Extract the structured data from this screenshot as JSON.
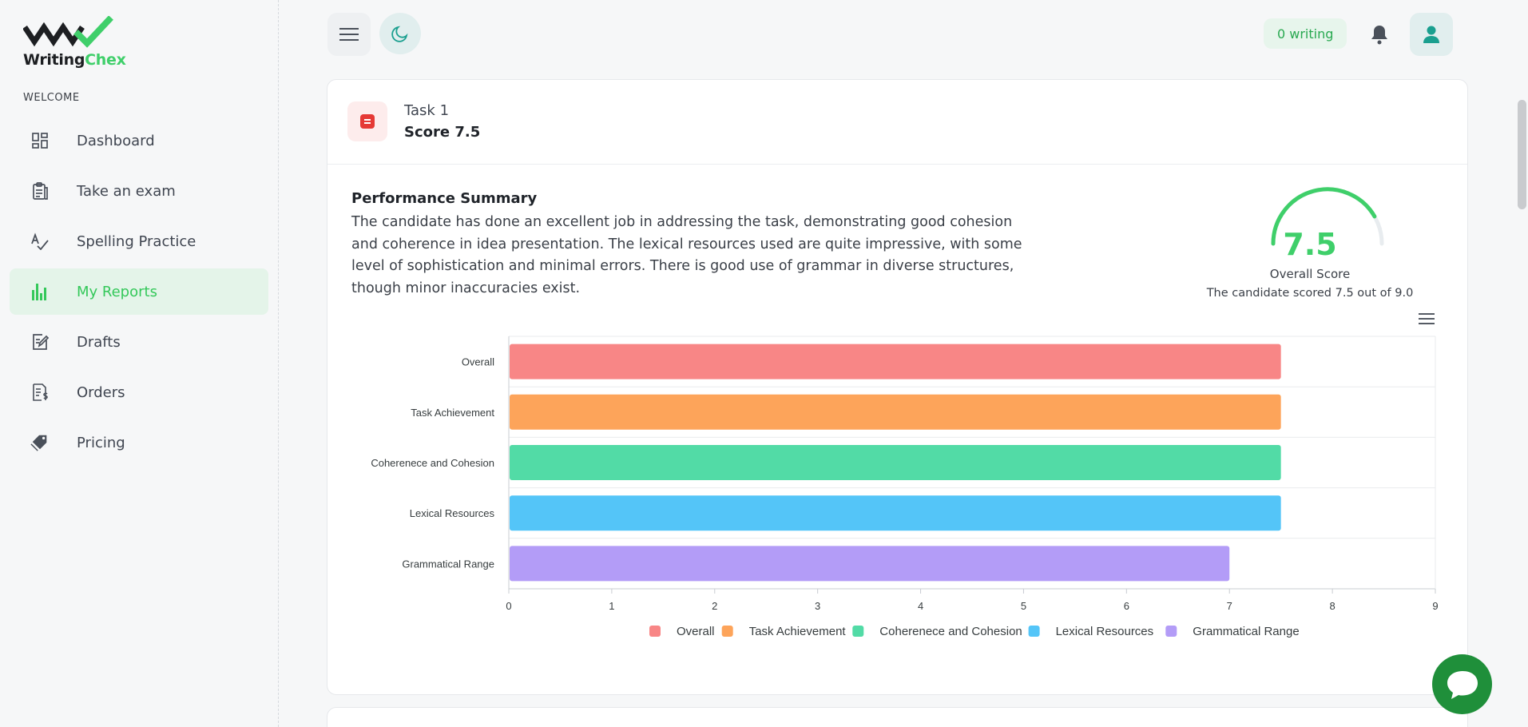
{
  "brand": {
    "name_part1": "Writing",
    "name_part2": "Chex",
    "accent": "#3fcf6a"
  },
  "sidebar": {
    "section_label": "WELCOME",
    "items": [
      {
        "label": "Dashboard",
        "icon": "dashboard-icon",
        "active": false
      },
      {
        "label": "Take an exam",
        "icon": "clipboard-icon",
        "active": false
      },
      {
        "label": "Spelling Practice",
        "icon": "spellcheck-icon",
        "active": false
      },
      {
        "label": "My Reports",
        "icon": "bar-chart-icon",
        "active": true
      },
      {
        "label": "Drafts",
        "icon": "edit-note-icon",
        "active": false
      },
      {
        "label": "Orders",
        "icon": "receipt-icon",
        "active": false
      },
      {
        "label": "Pricing",
        "icon": "tag-icon",
        "active": false
      }
    ]
  },
  "header": {
    "writing_count": "0 writing"
  },
  "task": {
    "title": "Task 1",
    "score_label": "Score 7.5",
    "summary_title": "Performance Summary",
    "summary_text": "The candidate has done an excellent job in addressing the task, demonstrating good cohesion and coherence in idea presentation. The lexical resources used are quite impressive, with some level of sophistication and minimal errors. There is good use of grammar in diverse structures, though minor inaccuracies exist.",
    "overall": {
      "value": "7.5",
      "fraction": 0.833,
      "label": "Overall Score",
      "caption": "The candidate scored 7.5 out of 9.0"
    }
  },
  "chart_data": {
    "type": "bar",
    "orientation": "horizontal",
    "categories": [
      "Overall",
      "Task Achievement",
      "Coherenece and Cohesion",
      "Lexical Resources",
      "Grammatical Range"
    ],
    "values": [
      7.5,
      7.5,
      7.5,
      7.5,
      7
    ],
    "colors": [
      "#f88686",
      "#fda45a",
      "#52dba6",
      "#54c5f8",
      "#b39cf7"
    ],
    "xlim": [
      0,
      9
    ],
    "x_ticks": [
      "0",
      "1",
      "2",
      "3",
      "4",
      "5",
      "6",
      "7",
      "8",
      "9"
    ],
    "legend": [
      "Overall",
      "Task Achievement",
      "Coherenece and Cohesion",
      "Lexical Resources",
      "Grammatical Range"
    ],
    "legend_position": "bottom",
    "grid": true
  }
}
